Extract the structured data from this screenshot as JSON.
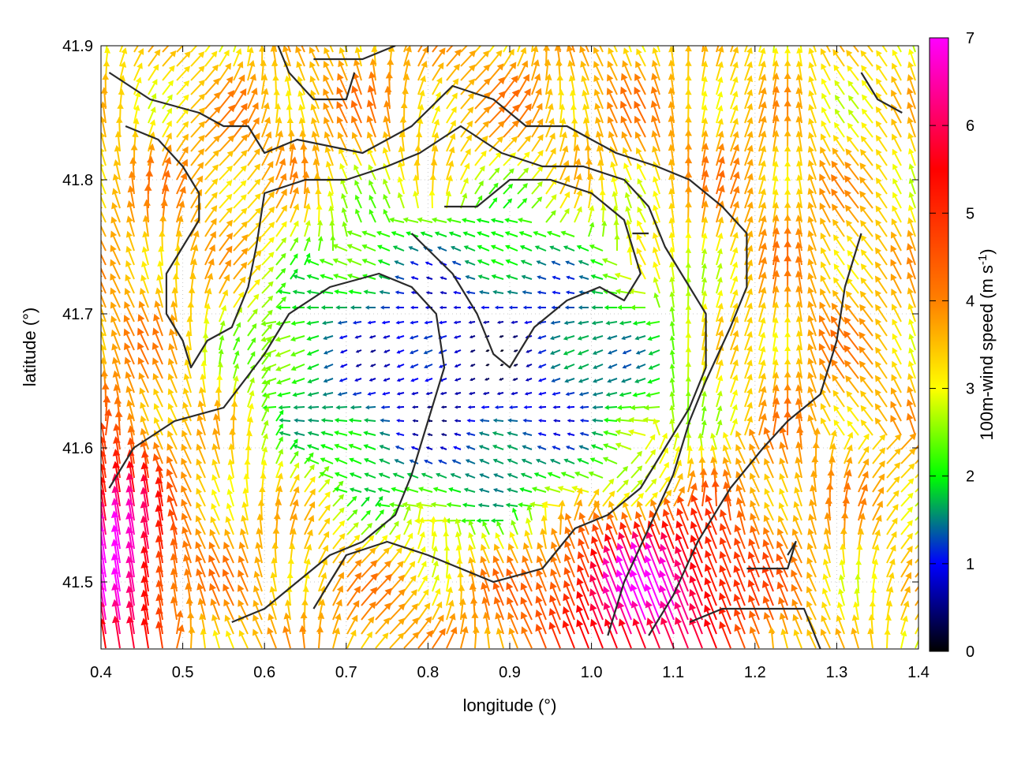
{
  "chart_data": {
    "type": "vector-field",
    "xlabel": "longitude (°)",
    "ylabel": "latitude (°)",
    "xlim": [
      0.4,
      1.4
    ],
    "ylim": [
      41.45,
      41.9
    ],
    "xticks": [
      "0.4",
      "0.5",
      "0.6",
      "0.7",
      "0.8",
      "0.9",
      "1.0",
      "1.1",
      "1.2",
      "1.3",
      "1.4"
    ],
    "yticks": [
      "41.5",
      "41.6",
      "41.7",
      "41.8",
      "41.9"
    ],
    "ytick_values": [
      41.5,
      41.6,
      41.7,
      41.8,
      41.9
    ],
    "grid": true,
    "colorbar": {
      "label_main": "100m-wind speed (m s",
      "label_sup": "-1",
      "label_close": ")",
      "range": [
        0,
        7
      ],
      "ticks": [
        "0",
        "1",
        "2",
        "3",
        "4",
        "5",
        "6",
        "7"
      ],
      "stops": [
        "#000000",
        "#0000ff",
        "#00ff00",
        "#ffff00",
        "#ff8000",
        "#ff0000",
        "#ff00ff"
      ],
      "stop_values": [
        0,
        1,
        2,
        3,
        4,
        5.5,
        7
      ]
    },
    "contours": [
      [
        [
          0.41,
          41.88
        ],
        [
          0.46,
          41.86
        ],
        [
          0.52,
          41.85
        ],
        [
          0.55,
          41.84
        ],
        [
          0.58,
          41.84
        ],
        [
          0.6,
          41.82
        ],
        [
          0.64,
          41.83
        ],
        [
          0.72,
          41.82
        ],
        [
          0.78,
          41.84
        ],
        [
          0.83,
          41.87
        ],
        [
          0.88,
          41.86
        ],
        [
          0.92,
          41.84
        ],
        [
          0.97,
          41.84
        ],
        [
          1.03,
          41.82
        ],
        [
          1.08,
          41.81
        ],
        [
          1.12,
          41.8
        ],
        [
          1.16,
          41.78
        ],
        [
          1.19,
          41.76
        ],
        [
          1.19,
          41.72
        ],
        [
          1.17,
          41.69
        ],
        [
          1.14,
          41.65
        ],
        [
          1.12,
          41.62
        ],
        [
          1.1,
          41.58
        ],
        [
          1.07,
          41.54
        ],
        [
          1.04,
          41.5
        ],
        [
          1.02,
          41.46
        ]
      ],
      [
        [
          0.43,
          41.84
        ],
        [
          0.47,
          41.83
        ],
        [
          0.5,
          41.81
        ],
        [
          0.52,
          41.79
        ],
        [
          0.52,
          41.77
        ],
        [
          0.5,
          41.75
        ],
        [
          0.48,
          41.73
        ],
        [
          0.48,
          41.7
        ],
        [
          0.5,
          41.68
        ],
        [
          0.51,
          41.66
        ],
        [
          0.53,
          41.68
        ],
        [
          0.56,
          41.69
        ],
        [
          0.58,
          41.72
        ],
        [
          0.59,
          41.75
        ],
        [
          0.6,
          41.79
        ],
        [
          0.65,
          41.8
        ],
        [
          0.7,
          41.8
        ],
        [
          0.75,
          41.81
        ],
        [
          0.79,
          41.82
        ],
        [
          0.84,
          41.84
        ],
        [
          0.89,
          41.82
        ],
        [
          0.94,
          41.81
        ],
        [
          0.99,
          41.81
        ],
        [
          1.04,
          41.8
        ],
        [
          1.07,
          41.78
        ],
        [
          1.09,
          41.75
        ],
        [
          1.12,
          41.72
        ],
        [
          1.14,
          41.7
        ],
        [
          1.14,
          41.66
        ],
        [
          1.12,
          41.63
        ],
        [
          1.09,
          41.6
        ],
        [
          1.06,
          41.57
        ],
        [
          1.02,
          41.55
        ],
        [
          0.98,
          41.54
        ],
        [
          0.94,
          41.51
        ],
        [
          0.88,
          41.5
        ],
        [
          0.84,
          41.51
        ],
        [
          0.8,
          41.52
        ],
        [
          0.75,
          41.53
        ],
        [
          0.7,
          41.52
        ],
        [
          0.66,
          41.48
        ]
      ],
      [
        [
          0.41,
          41.57
        ],
        [
          0.44,
          41.6
        ],
        [
          0.49,
          41.62
        ],
        [
          0.55,
          41.63
        ],
        [
          0.6,
          41.67
        ],
        [
          0.63,
          41.7
        ],
        [
          0.68,
          41.72
        ],
        [
          0.74,
          41.73
        ],
        [
          0.78,
          41.72
        ],
        [
          0.81,
          41.7
        ],
        [
          0.82,
          41.66
        ],
        [
          0.8,
          41.62
        ],
        [
          0.78,
          41.58
        ],
        [
          0.76,
          41.55
        ],
        [
          0.72,
          41.53
        ],
        [
          0.68,
          41.52
        ],
        [
          0.64,
          41.5
        ],
        [
          0.6,
          41.48
        ],
        [
          0.56,
          41.47
        ]
      ],
      [
        [
          0.78,
          41.76
        ],
        [
          0.83,
          41.73
        ],
        [
          0.86,
          41.7
        ],
        [
          0.88,
          41.67
        ],
        [
          0.9,
          41.66
        ],
        [
          0.93,
          41.69
        ],
        [
          0.97,
          41.71
        ],
        [
          1.01,
          41.72
        ],
        [
          1.04,
          41.71
        ],
        [
          1.06,
          41.73
        ],
        [
          1.04,
          41.77
        ],
        [
          1.0,
          41.79
        ],
        [
          0.95,
          41.8
        ],
        [
          0.9,
          41.8
        ],
        [
          0.86,
          41.78
        ],
        [
          0.82,
          41.78
        ]
      ],
      [
        [
          1.33,
          41.76
        ],
        [
          1.31,
          41.72
        ],
        [
          1.3,
          41.68
        ],
        [
          1.28,
          41.64
        ],
        [
          1.24,
          41.62
        ],
        [
          1.21,
          41.6
        ],
        [
          1.17,
          41.57
        ],
        [
          1.13,
          41.53
        ],
        [
          1.1,
          41.49
        ],
        [
          1.07,
          41.46
        ]
      ],
      [
        [
          1.12,
          41.47
        ],
        [
          1.16,
          41.48
        ],
        [
          1.21,
          41.48
        ],
        [
          1.26,
          41.48
        ],
        [
          1.28,
          41.45
        ]
      ],
      [
        [
          1.19,
          41.51
        ],
        [
          1.24,
          41.51
        ],
        [
          1.25,
          41.53
        ],
        [
          1.24,
          41.52
        ]
      ],
      [
        [
          0.66,
          41.89
        ],
        [
          0.72,
          41.89
        ],
        [
          0.76,
          41.9
        ]
      ],
      [
        [
          0.61,
          41.91
        ],
        [
          0.63,
          41.88
        ],
        [
          0.66,
          41.86
        ],
        [
          0.7,
          41.86
        ],
        [
          0.71,
          41.88
        ]
      ],
      [
        [
          1.33,
          41.88
        ],
        [
          1.35,
          41.86
        ],
        [
          1.38,
          41.85
        ]
      ],
      [
        [
          1.05,
          41.76
        ],
        [
          1.07,
          41.76
        ]
      ]
    ]
  }
}
